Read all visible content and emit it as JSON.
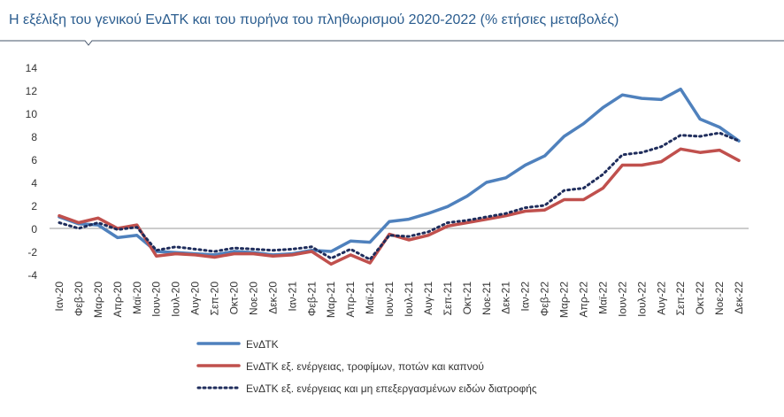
{
  "chart_data": {
    "type": "line",
    "title": "Η εξέλιξη του γενικού ΕνΔΤΚ και του πυρήνα του πληθωρισμού 2020-2022 (% ετήσιες μεταβολές)",
    "categories": [
      "Ιαν-20",
      "Φεβ-20",
      "Μαρ-20",
      "Απρ-20",
      "Μαϊ-20",
      "Ιουν-20",
      "Ιουλ-20",
      "Αυγ-20",
      "Σεπ-20",
      "Οκτ-20",
      "Νοε-20",
      "Δεκ-20",
      "Ιαν-21",
      "Φεβ-21",
      "Μαρ-21",
      "Απρ-21",
      "Μαϊ-21",
      "Ιουν-21",
      "Ιουλ-21",
      "Αυγ-21",
      "Σεπ-21",
      "Οκτ-21",
      "Νοε-21",
      "Δεκ-21",
      "Ιαν-22",
      "Φεβ-22",
      "Μαρ-22",
      "Απρ-22",
      "Μαϊ-22",
      "Ιουν-22",
      "Ιουλ-22",
      "Αυγ-22",
      "Σεπ-22",
      "Οκτ-22",
      "Νοε-22",
      "Δεκ-22"
    ],
    "series": [
      {
        "name": "ΕνΔΤΚ",
        "color": "#4f81bd",
        "line_style": "solid",
        "values": [
          1.0,
          0.4,
          0.3,
          -0.8,
          -0.6,
          -2.0,
          -2.1,
          -2.2,
          -2.3,
          -2.0,
          -2.1,
          -2.3,
          -2.2,
          -1.9,
          -2.0,
          -1.1,
          -1.2,
          0.6,
          0.8,
          1.3,
          1.9,
          2.8,
          4.0,
          4.4,
          5.5,
          6.3,
          8.0,
          9.1,
          10.5,
          11.6,
          11.3,
          11.2,
          12.1,
          9.5,
          8.8,
          7.6
        ]
      },
      {
        "name": "ΕνΔΤΚ εξ. ενέργειας, τροφίμων, ποτών και καπνού",
        "color": "#c0504d",
        "line_style": "solid",
        "values": [
          1.1,
          0.5,
          0.9,
          0.0,
          0.3,
          -2.4,
          -2.2,
          -2.3,
          -2.5,
          -2.2,
          -2.2,
          -2.4,
          -2.3,
          -2.0,
          -3.1,
          -2.3,
          -3.0,
          -0.5,
          -1.0,
          -0.6,
          0.2,
          0.5,
          0.8,
          1.1,
          1.5,
          1.6,
          2.5,
          2.5,
          3.5,
          5.5,
          5.5,
          5.8,
          6.9,
          6.6,
          6.8,
          5.9
        ]
      },
      {
        "name": "ΕνΔΤΚ εξ. ενέργειας και μη επεξεργασμένων ειδών διατροφής",
        "color": "#1f2d5c",
        "line_style": "dotted",
        "values": [
          0.5,
          0.0,
          0.5,
          -0.1,
          0.1,
          -1.9,
          -1.6,
          -1.8,
          -2.0,
          -1.7,
          -1.8,
          -1.9,
          -1.8,
          -1.6,
          -2.6,
          -1.8,
          -2.7,
          -0.6,
          -0.7,
          -0.3,
          0.5,
          0.7,
          1.0,
          1.3,
          1.8,
          2.0,
          3.3,
          3.5,
          4.7,
          6.4,
          6.6,
          7.1,
          8.1,
          8.0,
          8.3,
          7.6
        ]
      }
    ],
    "ylim": [
      -4,
      14
    ],
    "yticks": [
      -4,
      -2,
      0,
      2,
      4,
      6,
      8,
      10,
      12,
      14
    ],
    "grid": false
  }
}
